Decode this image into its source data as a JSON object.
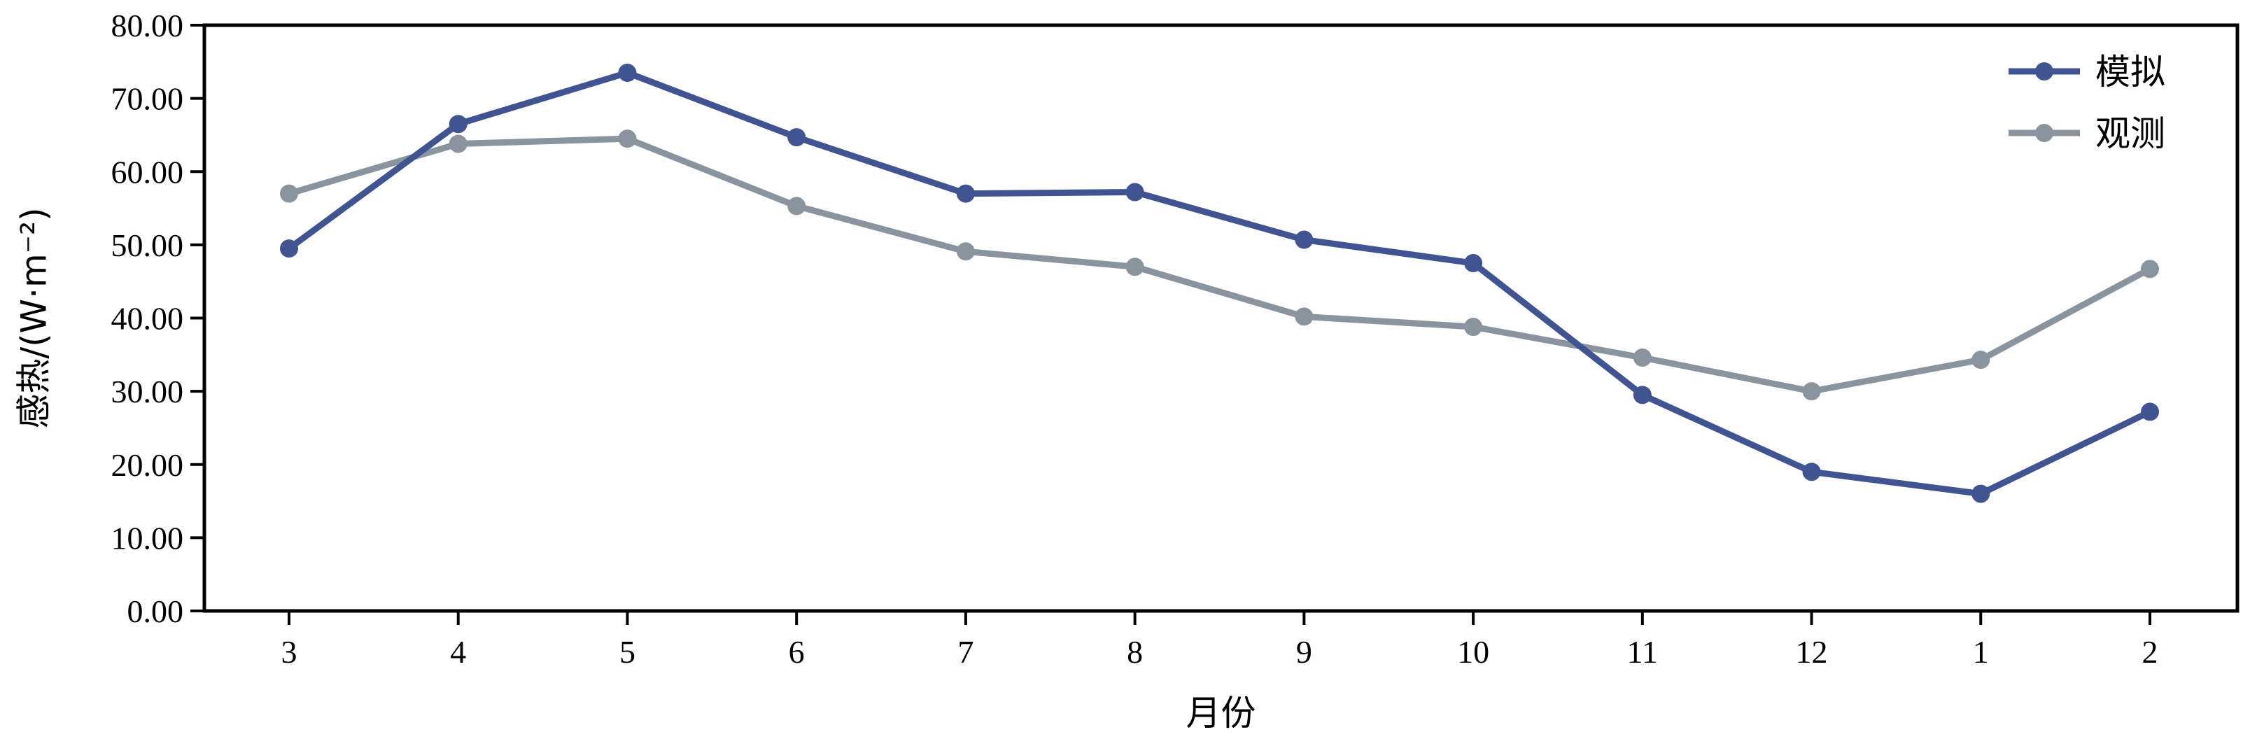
{
  "chart_data": {
    "type": "line",
    "title": "",
    "xlabel": "月份",
    "ylabel": "感热/(W·m⁻²)",
    "categories": [
      "3",
      "4",
      "5",
      "6",
      "7",
      "8",
      "9",
      "10",
      "11",
      "12",
      "1",
      "2"
    ],
    "yticks": [
      "0.00",
      "10.00",
      "20.00",
      "30.00",
      "40.00",
      "50.00",
      "60.00",
      "70.00",
      "80.00"
    ],
    "ylim": [
      0,
      80
    ],
    "grid": false,
    "legend_position": "top-right",
    "series": [
      {
        "name": "模拟",
        "color": "#3f5490",
        "values": [
          49.5,
          66.5,
          73.5,
          64.7,
          57.0,
          57.2,
          50.7,
          47.5,
          29.5,
          19.0,
          16.0,
          27.2
        ]
      },
      {
        "name": "观测",
        "color": "#8a949e",
        "values": [
          57.0,
          63.8,
          64.5,
          55.3,
          49.1,
          47.0,
          40.2,
          38.8,
          34.6,
          30.0,
          34.3,
          46.7
        ]
      }
    ]
  }
}
